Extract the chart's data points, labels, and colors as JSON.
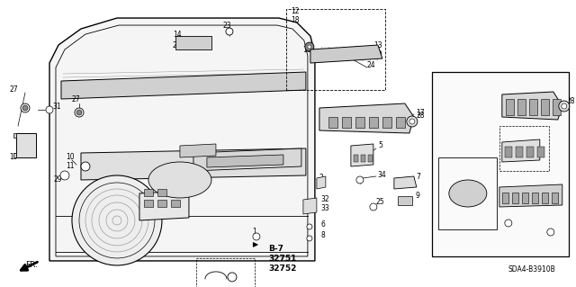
{
  "bg_color": "#ffffff",
  "diagram_code": "SDA4-B3910B",
  "figsize": [
    6.4,
    3.19
  ],
  "dpi": 100
}
